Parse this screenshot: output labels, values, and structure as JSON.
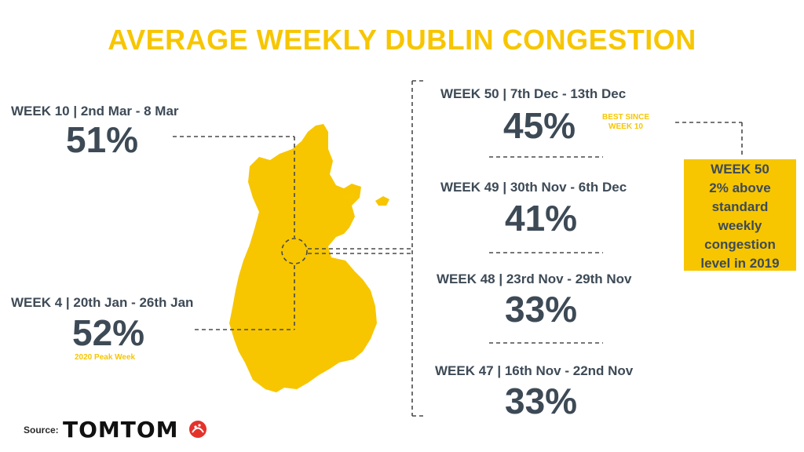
{
  "title": "AVERAGE WEEKLY DUBLIN CONGESTION",
  "left": [
    {
      "week": "WEEK 10 | 2nd Mar - 8 Mar",
      "value": "51%"
    },
    {
      "week": "WEEK 4 | 20th Jan - 26th Jan",
      "value": "52%",
      "note": "2020 Peak Week"
    }
  ],
  "right": [
    {
      "week": "WEEK 50 | 7th Dec - 13th Dec",
      "value": "45%",
      "note_line1": "BEST SINCE",
      "note_line2": "WEEK 10"
    },
    {
      "week": "WEEK 49 | 30th Nov - 6th Dec",
      "value": "41%"
    },
    {
      "week": "WEEK 48 | 23rd Nov - 29th Nov",
      "value": "33%"
    },
    {
      "week": "WEEK 47 | 16th Nov - 22nd Nov",
      "value": "33%"
    }
  ],
  "callout": {
    "lines": [
      "WEEK 50",
      "2% above",
      "standard",
      "weekly",
      "congestion",
      "level in 2019"
    ]
  },
  "source": {
    "label": "Source:",
    "brand": "TOMTOM"
  },
  "colors": {
    "accent": "#f7c600",
    "text": "#3d4a56",
    "dash": "#4a4a4a"
  }
}
